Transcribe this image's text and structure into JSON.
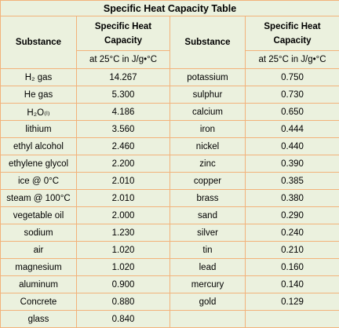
{
  "table": {
    "title": "Specific Heat Capacity Table",
    "columns": [
      "Substance",
      "Specific Heat Capacity",
      "Substance",
      "Specific Heat Capacity"
    ],
    "units": [
      "at 25°C in J/g•°C",
      "at 25°C in J/g•°C"
    ],
    "rows": [
      [
        "H₂ gas",
        "14.267",
        "potassium",
        "0.750"
      ],
      [
        "He gas",
        "5.300",
        "sulphur",
        "0.730"
      ],
      [
        "H₂O₍ₗ₎",
        "4.186",
        "calcium",
        "0.650"
      ],
      [
        "lithium",
        "3.560",
        "iron",
        "0.444"
      ],
      [
        "ethyl alcohol",
        "2.460",
        "nickel",
        "0.440"
      ],
      [
        "ethylene glycol",
        "2.200",
        "zinc",
        "0.390"
      ],
      [
        "ice @ 0°C",
        "2.010",
        "copper",
        "0.385"
      ],
      [
        "steam @ 100°C",
        "2.010",
        "brass",
        "0.380"
      ],
      [
        "vegetable oil",
        "2.000",
        "sand",
        "0.290"
      ],
      [
        "sodium",
        "1.230",
        "silver",
        "0.240"
      ],
      [
        "air",
        "1.020",
        "tin",
        "0.210"
      ],
      [
        "magnesium",
        "1.020",
        "lead",
        "0.160"
      ],
      [
        "aluminum",
        "0.900",
        "mercury",
        "0.140"
      ],
      [
        "Concrete",
        "0.880",
        "gold",
        "0.129"
      ],
      [
        "glass",
        "0.840"
      ]
    ]
  }
}
